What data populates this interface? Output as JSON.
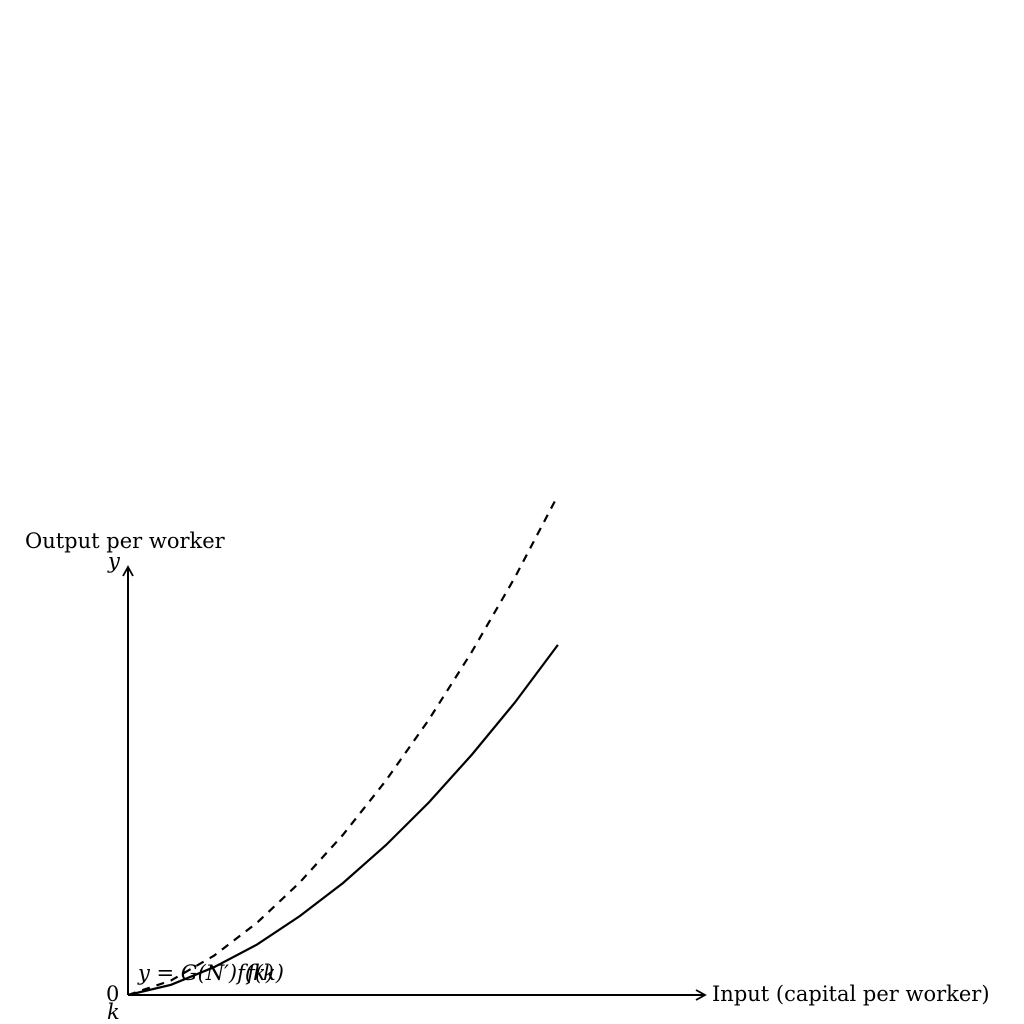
{
  "chart_data": {
    "type": "line",
    "title": "",
    "xlabel": "Input (capital per worker)",
    "ylabel": "Output per worker",
    "x_axis_symbol": "k",
    "y_axis_symbol": "y",
    "origin_label": "0",
    "xlim": [
      0,
      1.34
    ],
    "ylim": [
      0,
      1
    ],
    "grid": false,
    "legend": "none",
    "series": [
      {
        "style": "dashed",
        "points": [
          [
            0,
            0
          ],
          [
            0.1,
            0.034
          ],
          [
            0.2,
            0.092
          ],
          [
            0.3,
            0.169
          ],
          [
            0.4,
            0.264
          ],
          [
            0.5,
            0.375
          ],
          [
            0.6,
            0.502
          ],
          [
            0.7,
            0.645
          ],
          [
            0.8,
            0.804
          ],
          [
            0.9,
            0.978
          ],
          [
            1.0,
            1.17
          ]
        ]
      },
      {
        "style": "solid",
        "points": [
          [
            0,
            0
          ],
          [
            0.1,
            0.024
          ],
          [
            0.2,
            0.065
          ],
          [
            0.3,
            0.118
          ],
          [
            0.4,
            0.185
          ],
          [
            0.5,
            0.262
          ],
          [
            0.6,
            0.351
          ],
          [
            0.7,
            0.451
          ],
          [
            0.8,
            0.563
          ],
          [
            0.9,
            0.685
          ],
          [
            1.0,
            0.82
          ]
        ]
      }
    ],
    "annotations": [
      {
        "text": "y = G(N′)f(k)"
      },
      {
        "text": "f(k)"
      }
    ]
  }
}
